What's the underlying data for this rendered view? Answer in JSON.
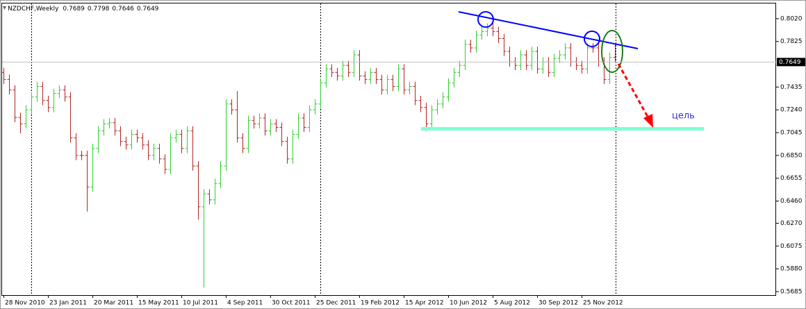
{
  "chart_data": {
    "type": "ohlc",
    "title": "NZDCHF,Weekly",
    "categories": [
      "28 Nov 2010",
      null,
      null,
      null,
      null,
      null,
      null,
      null,
      "23 Jan 2011",
      null,
      null,
      null,
      null,
      null,
      null,
      null,
      "20 Mar 2011",
      null,
      null,
      null,
      null,
      null,
      null,
      null,
      "15 May 2011",
      null,
      null,
      null,
      null,
      null,
      null,
      null,
      "10 Jul 2011",
      null,
      null,
      null,
      null,
      null,
      null,
      null,
      "4 Sep 2011",
      null,
      null,
      null,
      null,
      null,
      null,
      null,
      "30 Oct 2011",
      null,
      null,
      null,
      null,
      null,
      null,
      null,
      "25 Dec 2011",
      null,
      null,
      null,
      null,
      null,
      null,
      null,
      "19 Feb 2012",
      null,
      null,
      null,
      null,
      null,
      null,
      null,
      "15 Apr 2012",
      null,
      null,
      null,
      null,
      null,
      null,
      null,
      "10 Jun 2012",
      null,
      null,
      null,
      null,
      null,
      null,
      null,
      "5 Aug 2012",
      null,
      null,
      null,
      null,
      null,
      null,
      null,
      "30 Sep 2012",
      null,
      null,
      null,
      null,
      null,
      null,
      null,
      "25 Nov 2012",
      null,
      null,
      null,
      null,
      null,
      null
    ],
    "open": [
      0.756,
      0.75,
      0.741,
      0.7175,
      0.712,
      0.724,
      0.735,
      0.744,
      0.732,
      0.726,
      0.738,
      0.741,
      0.735,
      0.7,
      0.685,
      0.685,
      0.658,
      0.691,
      0.706,
      0.712,
      0.713,
      0.706,
      0.697,
      0.694,
      0.703,
      0.7,
      0.694,
      0.685,
      0.691,
      0.682,
      0.673,
      0.7,
      0.703,
      0.691,
      0.706,
      0.676,
      0.641,
      0.652,
      0.647,
      0.661,
      0.676,
      0.729,
      0.724,
      0.7,
      0.691,
      0.715,
      0.712,
      0.717,
      0.706,
      0.712,
      0.709,
      0.697,
      0.682,
      0.703,
      0.717,
      0.709,
      0.724,
      0.729,
      0.747,
      0.759,
      0.756,
      0.753,
      0.762,
      0.756,
      0.771,
      0.753,
      0.75,
      0.756,
      0.75,
      0.741,
      0.75,
      0.744,
      0.759,
      0.741,
      0.744,
      0.732,
      0.726,
      0.712,
      0.724,
      0.729,
      0.735,
      0.747,
      0.756,
      0.762,
      0.78,
      0.777,
      0.788,
      0.791,
      0.794,
      0.791,
      0.785,
      0.774,
      0.765,
      0.762,
      0.771,
      0.762,
      0.774,
      0.759,
      0.765,
      0.756,
      0.768,
      0.771,
      0.777,
      0.765,
      0.762,
      0.759,
      0.777,
      0.777,
      0.765,
      0.75,
      0.7689
    ],
    "high": [
      0.76,
      0.754,
      0.745,
      0.7215,
      0.728,
      0.739,
      0.748,
      0.748,
      0.736,
      0.742,
      0.745,
      0.745,
      0.739,
      0.704,
      0.689,
      0.689,
      0.695,
      0.71,
      0.716,
      0.717,
      0.717,
      0.71,
      0.701,
      0.707,
      0.707,
      0.704,
      0.698,
      0.695,
      0.695,
      0.686,
      0.704,
      0.707,
      0.707,
      0.71,
      0.71,
      0.68,
      0.656,
      0.656,
      0.665,
      0.68,
      0.733,
      0.733,
      0.74,
      0.704,
      0.719,
      0.719,
      0.721,
      0.721,
      0.716,
      0.716,
      0.713,
      0.701,
      0.707,
      0.721,
      0.721,
      0.728,
      0.733,
      0.751,
      0.763,
      0.763,
      0.76,
      0.766,
      0.766,
      0.775,
      0.775,
      0.757,
      0.76,
      0.76,
      0.754,
      0.754,
      0.754,
      0.763,
      0.763,
      0.748,
      0.748,
      0.736,
      0.73,
      0.728,
      0.733,
      0.739,
      0.751,
      0.76,
      0.766,
      0.784,
      0.784,
      0.792,
      0.795,
      0.798,
      0.798,
      0.795,
      0.789,
      0.778,
      0.769,
      0.775,
      0.775,
      0.778,
      0.778,
      0.769,
      0.769,
      0.772,
      0.775,
      0.781,
      0.781,
      0.769,
      0.766,
      0.781,
      0.781,
      0.781,
      0.769,
      0.773,
      0.7798
    ],
    "low": [
      0.746,
      0.737,
      0.7135,
      0.704,
      0.708,
      0.72,
      0.731,
      0.728,
      0.722,
      0.722,
      0.734,
      0.731,
      0.696,
      0.681,
      0.681,
      0.637,
      0.654,
      0.687,
      0.702,
      0.708,
      0.702,
      0.693,
      0.69,
      0.69,
      0.696,
      0.69,
      0.681,
      0.681,
      0.678,
      0.669,
      0.669,
      0.696,
      0.687,
      0.687,
      0.672,
      0.63,
      0.572,
      0.643,
      0.643,
      0.657,
      0.672,
      0.72,
      0.696,
      0.687,
      0.687,
      0.708,
      0.708,
      0.702,
      0.702,
      0.705,
      0.693,
      0.678,
      0.678,
      0.699,
      0.705,
      0.705,
      0.72,
      0.725,
      0.743,
      0.752,
      0.749,
      0.749,
      0.752,
      0.752,
      0.749,
      0.746,
      0.746,
      0.746,
      0.737,
      0.737,
      0.74,
      0.74,
      0.737,
      0.737,
      0.728,
      0.722,
      0.706,
      0.708,
      0.72,
      0.725,
      0.731,
      0.743,
      0.752,
      0.758,
      0.773,
      0.773,
      0.784,
      0.787,
      0.787,
      0.781,
      0.77,
      0.761,
      0.758,
      0.758,
      0.758,
      0.758,
      0.755,
      0.755,
      0.752,
      0.752,
      0.764,
      0.767,
      0.761,
      0.758,
      0.755,
      0.755,
      0.773,
      0.761,
      0.746,
      0.746,
      0.7646
    ],
    "close": [
      0.75,
      0.741,
      0.7175,
      0.712,
      0.724,
      0.735,
      0.744,
      0.732,
      0.726,
      0.738,
      0.741,
      0.735,
      0.7,
      0.685,
      0.685,
      0.658,
      0.691,
      0.706,
      0.712,
      0.713,
      0.706,
      0.697,
      0.694,
      0.703,
      0.7,
      0.694,
      0.685,
      0.691,
      0.682,
      0.673,
      0.7,
      0.703,
      0.691,
      0.706,
      0.676,
      0.641,
      0.652,
      0.647,
      0.661,
      0.676,
      0.729,
      0.724,
      0.7,
      0.691,
      0.715,
      0.712,
      0.717,
      0.706,
      0.712,
      0.709,
      0.697,
      0.682,
      0.703,
      0.717,
      0.709,
      0.724,
      0.729,
      0.747,
      0.759,
      0.756,
      0.753,
      0.762,
      0.756,
      0.771,
      0.753,
      0.75,
      0.756,
      0.75,
      0.741,
      0.75,
      0.744,
      0.759,
      0.741,
      0.744,
      0.732,
      0.726,
      0.712,
      0.724,
      0.729,
      0.735,
      0.747,
      0.756,
      0.762,
      0.78,
      0.777,
      0.788,
      0.791,
      0.794,
      0.791,
      0.785,
      0.774,
      0.765,
      0.762,
      0.771,
      0.762,
      0.774,
      0.759,
      0.765,
      0.756,
      0.768,
      0.771,
      0.777,
      0.765,
      0.762,
      0.759,
      0.777,
      0.777,
      0.765,
      0.75,
      0.7689,
      0.7649
    ],
    "up_color": "#32cd32",
    "down_color": "#b22222",
    "ylim": [
      0.5655,
      0.815
    ],
    "yticks": [
      {
        "value": 0.802,
        "label": "0.8020"
      },
      0.7825,
      0.7435,
      {
        "value": 0.724,
        "label": "0.7240"
      },
      0.7045,
      {
        "value": 0.685,
        "label": "0.6850"
      },
      0.6655,
      {
        "value": 0.646,
        "label": "0.6460"
      },
      {
        "value": 0.627,
        "label": "0.6270"
      },
      0.6075,
      {
        "value": 0.588,
        "label": "0.5880"
      },
      0.5685
    ],
    "annotation": "цель"
  }
}
